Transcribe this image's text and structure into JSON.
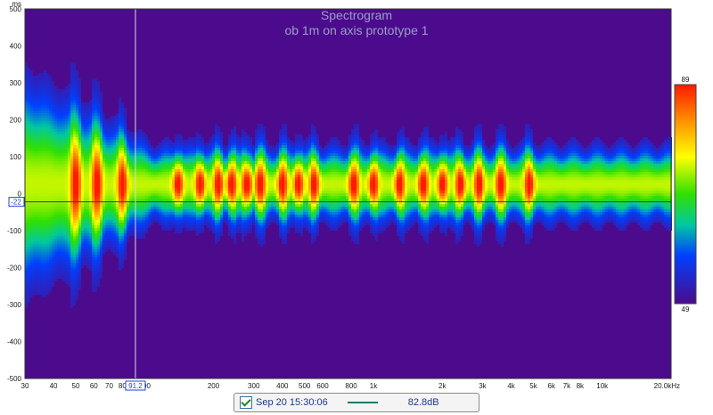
{
  "chart_data": {
    "type": "heatmap",
    "title": "Spectrogram",
    "subtitle": "ob 1m on axis prototype 1",
    "y_unit": "ms",
    "x_ticks": [
      "30",
      "40",
      "50",
      "60",
      "70",
      "80",
      "100",
      "200",
      "300",
      "400",
      "500",
      "600",
      "800",
      "1k",
      "2k",
      "3k",
      "4k",
      "5k",
      "6k",
      "7k",
      "8k",
      "10k",
      "20.0kHz"
    ],
    "x_tick_freqs": [
      30,
      40,
      50,
      60,
      70,
      80,
      100,
      200,
      300,
      400,
      500,
      600,
      800,
      1000,
      2000,
      3000,
      4000,
      5000,
      6000,
      7000,
      8000,
      10000,
      20000
    ],
    "y_ticks": [
      "500",
      "400",
      "300",
      "200",
      "100",
      "0",
      "-100",
      "-200",
      "-300",
      "-400",
      "-500"
    ],
    "y_tick_values": [
      500,
      400,
      300,
      200,
      100,
      0,
      -100,
      -200,
      -300,
      -400,
      -500
    ],
    "xlim_hz": [
      30,
      20000
    ],
    "ylim_ms": [
      -500,
      500
    ],
    "colorbar": {
      "max_label": "89",
      "min_label": "49",
      "max_db": 89,
      "min_db": 49
    },
    "cursor": {
      "x_label": "91.2",
      "x_hz": 91.2,
      "y_label": "-22",
      "y_ms": -22
    },
    "peak_frequencies_hz": [
      50,
      62,
      80,
      140,
      175,
      210,
      240,
      280,
      320,
      400,
      470,
      550,
      820,
      1000,
      1300,
      1650,
      2000,
      2400,
      2900,
      3600,
      4800
    ],
    "grid": false
  },
  "legend": {
    "checked": true,
    "measurement_name": "Sep 20 15:30:06",
    "line_color": "#157a6e",
    "level": "82.8dB"
  },
  "colors": {
    "background": "#4b0b8c",
    "cursor": "#d8d8ee",
    "axis_text": "#1a1a1a",
    "title_text": "#9aa0c8"
  }
}
